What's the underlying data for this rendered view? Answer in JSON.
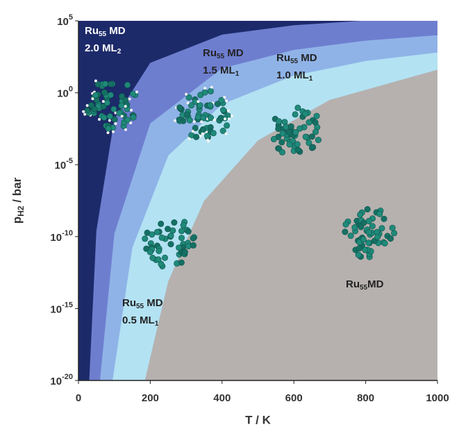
{
  "chart_data": {
    "type": "area",
    "xlabel": "T / K",
    "ylabel": [
      "p",
      "H2",
      " / bar"
    ],
    "xlim": [
      0,
      1000
    ],
    "ylim": [
      1e-20,
      100000
    ],
    "yscale": "log",
    "xticks": [
      0,
      200,
      400,
      600,
      800,
      1000
    ],
    "yticks": [
      {
        "value": 1e-20,
        "label": "10",
        "exponent": "-20"
      },
      {
        "value": 1e-15,
        "label": "10",
        "exponent": "-15"
      },
      {
        "value": 1e-10,
        "label": "10",
        "exponent": "-10"
      },
      {
        "value": 1e-05,
        "label": "10",
        "exponent": "-5"
      },
      {
        "value": 1,
        "label": "10",
        "exponent": "0"
      },
      {
        "value": 100000,
        "label": "10",
        "exponent": "5"
      }
    ],
    "background": "#1d2a6a",
    "series": [
      {
        "color": "#6e7ecf",
        "x": [
          30,
          50,
          100,
          200,
          400,
          600,
          787
        ],
        "values": [
          1e-20,
          2.5e-10,
          0.015,
          120,
          11000,
          49000,
          100000
        ]
      },
      {
        "color": "#8fb3e7",
        "x": [
          60,
          100,
          200,
          400,
          600,
          800,
          1000
        ],
        "values": [
          1e-20,
          1.6e-10,
          0.0074,
          50,
          950,
          4200,
          10000
        ]
      },
      {
        "color": "#b3e2f3",
        "x": [
          95,
          150,
          250,
          400,
          600,
          800,
          1000
        ],
        "values": [
          1e-20,
          1.7e-11,
          4.2e-05,
          0.16,
          16,
          160,
          630
        ]
      },
      {
        "color": "#b6b1af",
        "x": [
          185,
          250,
          350,
          500,
          700,
          1000
        ],
        "values": [
          1e-20,
          7.9e-14,
          3.1e-08,
          0.00049,
          0.32,
          40
        ]
      }
    ],
    "annotations": [
      {
        "color": "#ffffff",
        "line1": [
          "Ru",
          "55",
          " MD"
        ],
        "line2": [
          "2.0 ML",
          "2"
        ]
      },
      {
        "color": "#222222",
        "line1": [
          "Ru",
          "55",
          " MD"
        ],
        "line2": [
          "1.5 ML",
          "1"
        ]
      },
      {
        "color": "#222222",
        "line1": [
          "Ru",
          "55",
          " MD"
        ],
        "line2": [
          "1.0 ML",
          "1"
        ]
      },
      {
        "color": "#222222",
        "line1": [
          "Ru",
          "55",
          " MD"
        ],
        "line2": [
          "0.5 ML",
          "1"
        ]
      },
      {
        "color": "#222222",
        "line1": [
          "Ru",
          "55",
          "MD"
        ]
      }
    ]
  }
}
